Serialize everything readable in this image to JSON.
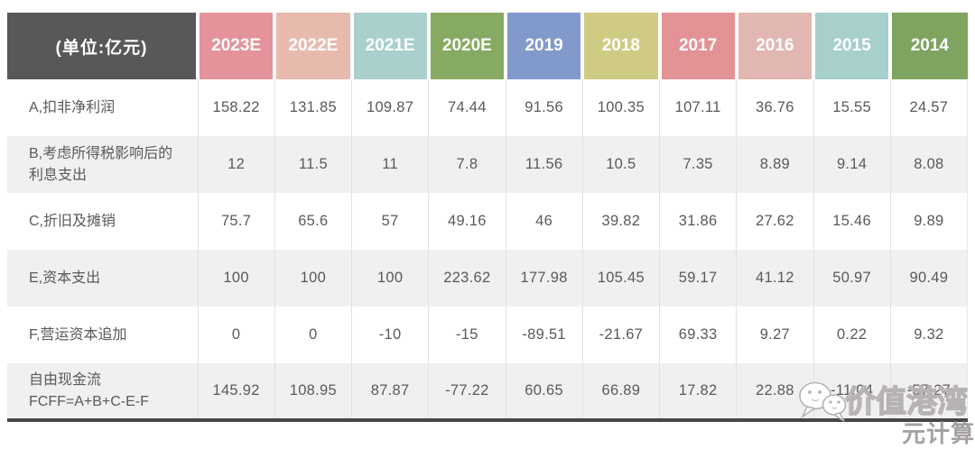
{
  "table": {
    "unit_header": "(单位:亿元)",
    "header_bg": "#59575a",
    "text_color": "#5a585b",
    "alt_row_bg": "#f1f0f1",
    "columns": [
      {
        "label": "2023E",
        "color": "#e39399"
      },
      {
        "label": "2022E",
        "color": "#e8baae"
      },
      {
        "label": "2021E",
        "color": "#a9d0cd"
      },
      {
        "label": "2020E",
        "color": "#86aa61"
      },
      {
        "label": "2019",
        "color": "#8299cc"
      },
      {
        "label": "2018",
        "color": "#d0cb83"
      },
      {
        "label": "2017",
        "color": "#e39295"
      },
      {
        "label": "2016",
        "color": "#e2b7b1"
      },
      {
        "label": "2015",
        "color": "#a7cfcc"
      },
      {
        "label": "2014",
        "color": "#7ea45f"
      }
    ],
    "rows": [
      {
        "label_lines": [
          "A,扣非净利润"
        ],
        "values": [
          "158.22",
          "131.85",
          "109.87",
          "74.44",
          "91.56",
          "100.35",
          "107.11",
          "36.76",
          "15.55",
          "24.57"
        ]
      },
      {
        "label_lines": [
          "B,考虑所得税影响后的",
          "利息支出"
        ],
        "values": [
          "12",
          "11.5",
          "11",
          "7.8",
          "11.56",
          "10.5",
          "7.35",
          "8.89",
          "9.14",
          "8.08"
        ]
      },
      {
        "label_lines": [
          "C,折旧及摊销"
        ],
        "values": [
          "75.7",
          "65.6",
          "57",
          "49.16",
          "46",
          "39.82",
          "31.86",
          "27.62",
          "15.46",
          "9.89"
        ]
      },
      {
        "label_lines": [
          "E,资本支出"
        ],
        "values": [
          "100",
          "100",
          "100",
          "223.62",
          "177.98",
          "105.45",
          "59.17",
          "41.12",
          "50.97",
          "90.49"
        ]
      },
      {
        "label_lines": [
          "F,营运资本追加"
        ],
        "values": [
          "0",
          "0",
          "-10",
          "-15",
          "-89.51",
          "-21.67",
          "69.33",
          "9.27",
          "0.22",
          "9.32"
        ]
      },
      {
        "label_lines": [
          "自由现金流",
          "FCFF=A+B+C-E-F"
        ],
        "values": [
          "145.92",
          "108.95",
          "87.87",
          "-77.22",
          "60.65",
          "66.89",
          "17.82",
          "22.88",
          "-11.04",
          "-57.27"
        ]
      }
    ]
  },
  "watermark": {
    "brand": "价值港湾",
    "source": "元计算",
    "icon": "wechat-icon",
    "color": "#b6b2b3"
  },
  "chart_data": {
    "type": "table",
    "title": "(单位:亿元)",
    "columns": [
      "2023E",
      "2022E",
      "2021E",
      "2020E",
      "2019",
      "2018",
      "2017",
      "2016",
      "2015",
      "2014"
    ],
    "rows": [
      {
        "name": "A,扣非净利润",
        "values": [
          158.22,
          131.85,
          109.87,
          74.44,
          91.56,
          100.35,
          107.11,
          36.76,
          15.55,
          24.57
        ]
      },
      {
        "name": "B,考虑所得税影响后的利息支出",
        "values": [
          12,
          11.5,
          11,
          7.8,
          11.56,
          10.5,
          7.35,
          8.89,
          9.14,
          8.08
        ]
      },
      {
        "name": "C,折旧及摊销",
        "values": [
          75.7,
          65.6,
          57,
          49.16,
          46,
          39.82,
          31.86,
          27.62,
          15.46,
          9.89
        ]
      },
      {
        "name": "E,资本支出",
        "values": [
          100,
          100,
          100,
          223.62,
          177.98,
          105.45,
          59.17,
          41.12,
          50.97,
          90.49
        ]
      },
      {
        "name": "F,营运资本追加",
        "values": [
          0,
          0,
          -10,
          -15,
          -89.51,
          -21.67,
          69.33,
          9.27,
          0.22,
          9.32
        ]
      },
      {
        "name": "自由现金流 FCFF=A+B+C-E-F",
        "values": [
          145.92,
          108.95,
          87.87,
          -77.22,
          60.65,
          66.89,
          17.82,
          22.88,
          -11.04,
          -57.27
        ]
      }
    ]
  }
}
